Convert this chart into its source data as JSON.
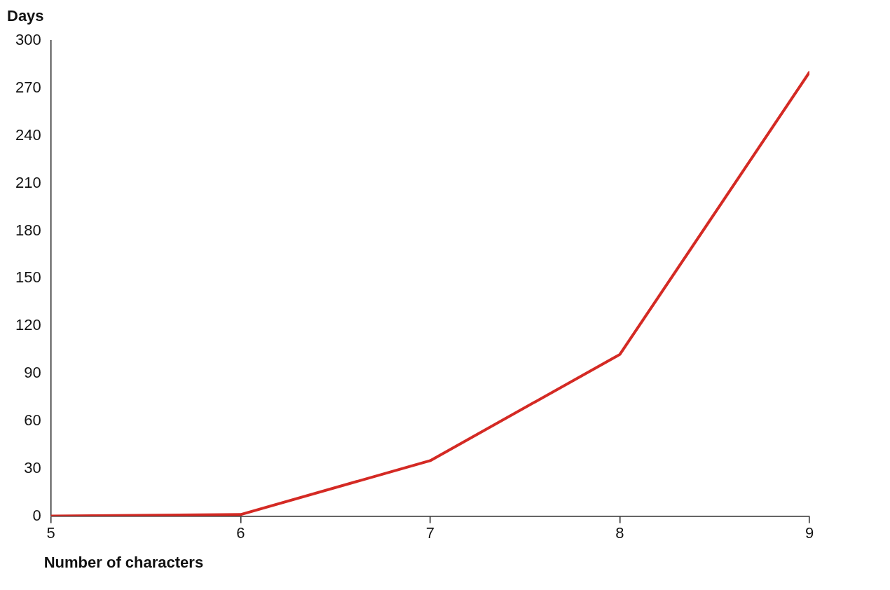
{
  "chart_data": {
    "type": "line",
    "ylabel": "Days",
    "xlabel": "Number of characters",
    "x": [
      5,
      6,
      7,
      8,
      9
    ],
    "series": [
      {
        "color": "#d42a24",
        "values": [
          0,
          1,
          35,
          102,
          280
        ]
      }
    ],
    "xlim": [
      5,
      9
    ],
    "xticks": [
      5,
      6,
      7,
      8,
      9
    ],
    "ylim": [
      0,
      300
    ],
    "yticks": [
      0,
      30,
      60,
      90,
      120,
      150,
      180,
      210,
      240,
      270,
      300
    ],
    "grid": false,
    "legend": false,
    "marker": "none",
    "line_style": "solid"
  }
}
